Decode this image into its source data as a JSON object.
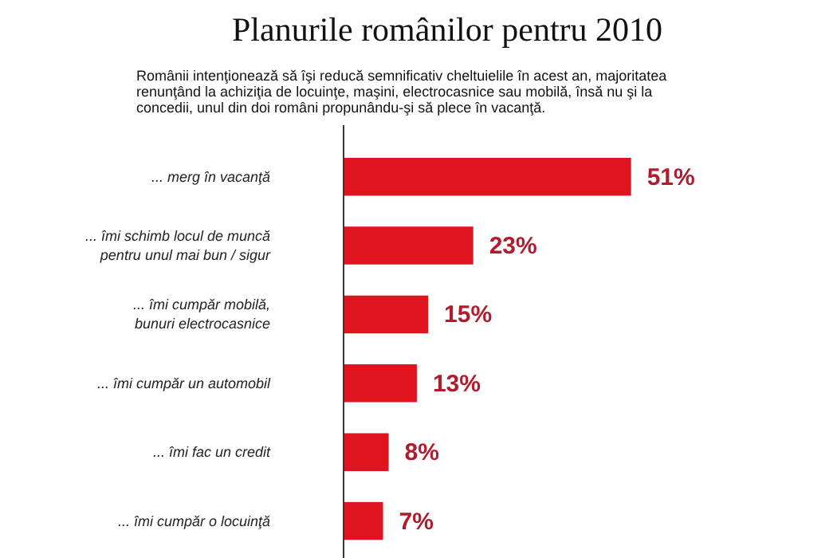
{
  "chart_data": {
    "type": "bar",
    "orientation": "horizontal",
    "title": "Planurile românilor pentru 2010",
    "subtitle": "Românii intenţionează să îşi reducă semnificativ cheltuielile în acest an, majoritatea renunţând la achiziţia de locuinţe, maşini, electrocasnice sau mobilă, însă nu şi la concedii, unul din doi români propunându-şi să plece în vacanţă.",
    "categories": [
      "... merg în vacanţă",
      "... îmi schimb locul de muncă\npentru unul mai bun / sigur",
      "... îmi cumpăr mobilă,\nbunuri electrocasnice",
      "... îmi cumpăr un automobil",
      "... îmi fac un credit",
      "... îmi cumpăr o locuinţă"
    ],
    "values": [
      51,
      23,
      15,
      13,
      8,
      7
    ],
    "value_labels": [
      "51%",
      "23%",
      "15%",
      "13%",
      "8%",
      "7%"
    ],
    "color": "#e0141e",
    "relative": false,
    "grid": false
  }
}
